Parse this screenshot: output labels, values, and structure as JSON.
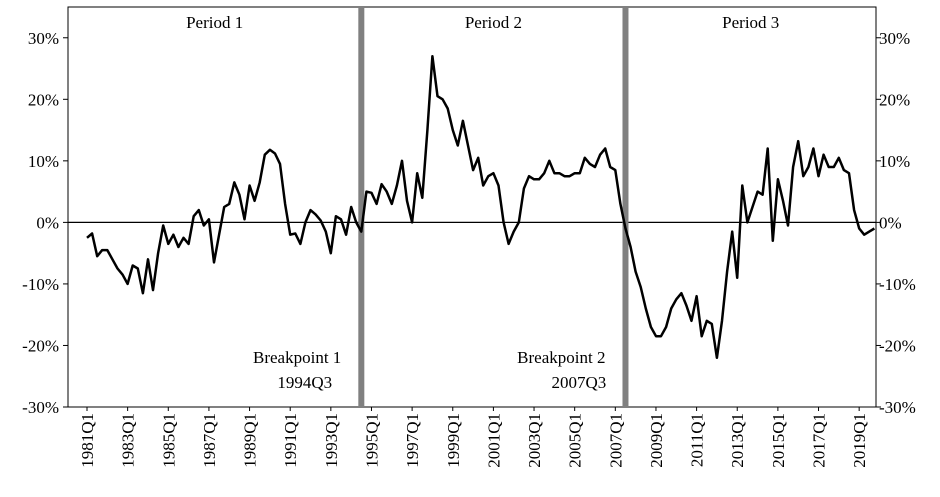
{
  "chart_data": {
    "type": "line",
    "categories": [
      "1981Q1",
      null,
      null,
      null,
      null,
      null,
      null,
      null,
      "1983Q1",
      null,
      null,
      null,
      null,
      null,
      null,
      null,
      "1985Q1",
      null,
      null,
      null,
      null,
      null,
      null,
      null,
      "1987Q1",
      null,
      null,
      null,
      null,
      null,
      null,
      null,
      "1989Q1",
      null,
      null,
      null,
      null,
      null,
      null,
      null,
      "1991Q1",
      null,
      null,
      null,
      null,
      null,
      null,
      null,
      "1993Q1",
      null,
      null,
      null,
      null,
      null,
      null,
      null,
      "1995Q1",
      null,
      null,
      null,
      null,
      null,
      null,
      null,
      "1997Q1",
      null,
      null,
      null,
      null,
      null,
      null,
      null,
      "1999Q1",
      null,
      null,
      null,
      null,
      null,
      null,
      null,
      "2001Q1",
      null,
      null,
      null,
      null,
      null,
      null,
      null,
      "2003Q1",
      null,
      null,
      null,
      null,
      null,
      null,
      null,
      "2005Q1",
      null,
      null,
      null,
      null,
      null,
      null,
      null,
      "2007Q1",
      null,
      null,
      null,
      null,
      null,
      null,
      null,
      "2009Q1",
      null,
      null,
      null,
      null,
      null,
      null,
      null,
      "2011Q1",
      null,
      null,
      null,
      null,
      null,
      null,
      null,
      "2013Q1",
      null,
      null,
      null,
      null,
      null,
      null,
      null,
      "2015Q1",
      null,
      null,
      null,
      null,
      null,
      null,
      null,
      "2017Q1",
      null,
      null,
      null,
      null,
      null,
      null,
      null,
      "2019Q1",
      null,
      null,
      null
    ],
    "series": [
      {
        "color": "#000000",
        "values": [
          -2.5,
          -1.8,
          -5.5,
          -4.5,
          -4.5,
          -6,
          -7.5,
          -8.5,
          -10,
          -7,
          -7.5,
          -11.5,
          -6,
          -11,
          -5,
          -0.5,
          -3.5,
          -2,
          -4,
          -2.5,
          -3.5,
          1,
          2,
          -0.5,
          0.5,
          -6.5,
          -2,
          2.5,
          3,
          6.5,
          4.5,
          0.5,
          6,
          3.5,
          6.5,
          11,
          11.8,
          11.2,
          9.5,
          3,
          -2,
          -1.8,
          -3.5,
          0,
          2,
          1.3,
          0.3,
          -1.5,
          -5,
          1,
          0.5,
          -2,
          2.5,
          0,
          -1.5,
          5,
          4.8,
          3,
          6.2,
          5,
          3,
          6,
          10,
          3.5,
          0,
          8,
          4,
          15,
          27,
          20.5,
          20,
          18.5,
          15,
          12.5,
          16.5,
          12.5,
          8.5,
          10.5,
          6,
          7.5,
          8,
          6,
          0,
          -3.5,
          -1.5,
          0,
          5.5,
          7.5,
          7,
          7,
          8,
          10,
          8,
          8,
          7.5,
          7.5,
          8,
          8,
          10.5,
          9.5,
          9,
          11,
          12,
          9,
          8.5,
          3,
          -1,
          -4,
          -8,
          -10.5,
          -14,
          -17,
          -18.5,
          -18.5,
          -17,
          -14,
          -12.5,
          -11.5,
          -13.5,
          -16,
          -12,
          -18.5,
          -16,
          -16.5,
          -22,
          -16,
          -8,
          -1.5,
          -9,
          6,
          0,
          2.5,
          5,
          4.5,
          12,
          -3,
          7,
          3.5,
          -0.5,
          9,
          13.2,
          7.5,
          9,
          12,
          7.5,
          11,
          9,
          9,
          10.5,
          8.5,
          8,
          2,
          -1,
          -2,
          -1.5,
          -1
        ]
      }
    ],
    "ylim": [
      -30,
      35
    ],
    "yticks": [
      {
        "value": -30,
        "label": "-30%"
      },
      {
        "value": -20,
        "label": "-20%"
      },
      {
        "value": -10,
        "label": "-10%"
      },
      {
        "value": 0,
        "label": "0%"
      },
      {
        "value": 10,
        "label": "10%"
      },
      {
        "value": 20,
        "label": "20%"
      },
      {
        "value": 30,
        "label": "30%"
      }
    ],
    "y2lim": [
      -30,
      35
    ],
    "y2ticks": [
      {
        "value": -30,
        "label": "-30%"
      },
      {
        "value": -20,
        "label": "-20%"
      },
      {
        "value": -10,
        "label": "-10%"
      },
      {
        "value": 0,
        "label": "0%"
      },
      {
        "value": 10,
        "label": "10%"
      },
      {
        "value": 20,
        "label": "20%"
      },
      {
        "value": 30,
        "label": "30%"
      }
    ],
    "periods": [
      "Period 1",
      "Period 2",
      "Period 3"
    ],
    "breakpoints": [
      {
        "label": "Breakpoint 1",
        "date": "1994Q3",
        "color": "#808080"
      },
      {
        "label": "Breakpoint 2",
        "date": "2007Q3",
        "color": "#808080"
      }
    ]
  }
}
